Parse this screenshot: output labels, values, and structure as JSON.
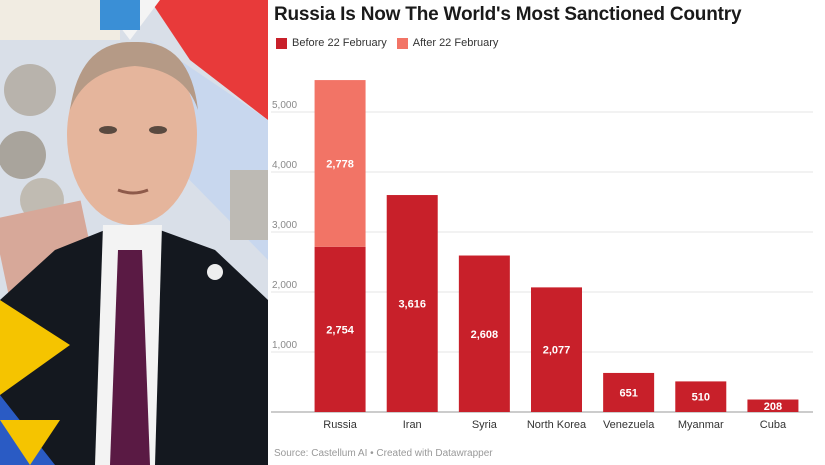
{
  "chart_data": {
    "type": "bar",
    "stacked": true,
    "title": "Russia Is Now The World's Most Sanctioned Country",
    "categories": [
      "Russia",
      "Iran",
      "Syria",
      "North Korea",
      "Venezuela",
      "Myanmar",
      "Cuba"
    ],
    "series": [
      {
        "name": "Before 22 February",
        "color": "#c8202a",
        "values": [
          2754,
          3616,
          2608,
          2077,
          651,
          510,
          208
        ]
      },
      {
        "name": "After 22 February",
        "color": "#f27466",
        "values": [
          2778,
          0,
          0,
          0,
          0,
          0,
          0
        ]
      }
    ],
    "data_labels": [
      [
        "2,754",
        "3,616",
        "2,608",
        "2,077",
        "651",
        "510",
        "208"
      ],
      [
        "2,778",
        "",
        "",
        "",
        "",
        "",
        ""
      ]
    ],
    "yticks": [
      1000,
      2000,
      3000,
      4000,
      5000
    ],
    "ytick_labels": [
      "1,000",
      "2,000",
      "3,000",
      "4,000",
      "5,000"
    ],
    "ylim": [
      0,
      5700
    ],
    "grid": true,
    "legend_position": "top-left",
    "source": "Source: Castellum AI • Created with Datawrapper"
  }
}
